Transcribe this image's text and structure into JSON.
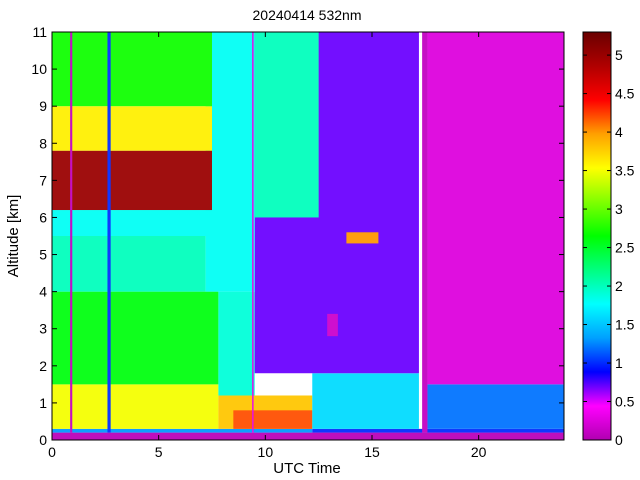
{
  "chart_data": {
    "type": "heatmap",
    "title": "20240414 532nm",
    "xlabel": "UTC Time",
    "ylabel": "Altitude [km]",
    "xlim": [
      0,
      24
    ],
    "ylim": [
      0,
      11
    ],
    "xticks": [
      0,
      5,
      10,
      15,
      20
    ],
    "yticks": [
      0,
      1,
      2,
      3,
      4,
      5,
      6,
      7,
      8,
      9,
      10,
      11
    ],
    "colorbar": {
      "ticks": [
        "0",
        "0.5",
        "1",
        "1.5",
        "2",
        "2.5",
        "3",
        "3.5",
        "4",
        "4.5",
        "5"
      ],
      "range": [
        0,
        5.3
      ],
      "colormap": [
        "#b000b0",
        "#ff00ff",
        "#0000ff",
        "#00a0ff",
        "#00ffff",
        "#00ff80",
        "#00ff00",
        "#80ff00",
        "#ffff00",
        "#ffa000",
        "#ff0000",
        "#b00000",
        "#6a0000"
      ]
    },
    "regions": [
      {
        "x0": 0,
        "x1": 24,
        "y0": 0,
        "y1": 0.2,
        "value": 0.05
      },
      {
        "x0": 0,
        "x1": 12.2,
        "y0": 0.2,
        "y1": 0.3,
        "value": 1.3
      },
      {
        "x0": 12.2,
        "x1": 24,
        "y0": 0.2,
        "y1": 0.3,
        "value": 1.0
      },
      {
        "x0": 0,
        "x1": 7.8,
        "y0": 0.3,
        "y1": 1.5,
        "value": 3.5
      },
      {
        "x0": 7.8,
        "x1": 12.2,
        "y0": 0.3,
        "y1": 1.2,
        "value": 3.8
      },
      {
        "x0": 8.5,
        "x1": 12.2,
        "y0": 0.3,
        "y1": 0.8,
        "value": 4.2
      },
      {
        "x0": 12.2,
        "x1": 17.2,
        "y0": 0.3,
        "y1": 1.8,
        "value": 1.6
      },
      {
        "x0": 17.6,
        "x1": 24,
        "y0": 0.3,
        "y1": 1.5,
        "value": 1.2
      },
      {
        "x0": 0,
        "x1": 7.8,
        "y0": 1.5,
        "y1": 4.0,
        "value": 2.6
      },
      {
        "x0": 7.8,
        "x1": 9.5,
        "y0": 1.2,
        "y1": 4.0,
        "value": 1.9
      },
      {
        "x0": 0,
        "x1": 7.2,
        "y0": 4.0,
        "y1": 5.5,
        "value": 2.0
      },
      {
        "x0": 9.5,
        "x1": 17.2,
        "y0": 1.8,
        "y1": 11,
        "value": 0.7
      },
      {
        "x0": 17.6,
        "x1": 24,
        "y0": 1.5,
        "y1": 11,
        "value": 0.25
      },
      {
        "x0": 7.2,
        "x1": 9.5,
        "y0": 4.0,
        "y1": 11,
        "value": 1.8
      },
      {
        "x0": 0,
        "x1": 7.8,
        "y0": 5.5,
        "y1": 6.2,
        "value": 1.8
      },
      {
        "x0": 0,
        "x1": 7.5,
        "y0": 6.2,
        "y1": 7.8,
        "value": 5.0
      },
      {
        "x0": 0,
        "x1": 7.5,
        "y0": 7.8,
        "y1": 9.0,
        "value": 3.6
      },
      {
        "x0": 0,
        "x1": 7.5,
        "y0": 9.0,
        "y1": 11,
        "value": 2.7
      },
      {
        "x0": 9.5,
        "x1": 12.5,
        "y0": 6.0,
        "y1": 11,
        "value": 2.0
      },
      {
        "x0": 0.85,
        "x1": 0.95,
        "y0": 0.2,
        "y1": 11,
        "value": 0.1
      },
      {
        "x0": 2.6,
        "x1": 2.75,
        "y0": 0.2,
        "y1": 11,
        "value": 1.0
      },
      {
        "x0": 17.35,
        "x1": 17.6,
        "y0": 0.2,
        "y1": 11,
        "value": 0.1
      },
      {
        "x0": 9.38,
        "x1": 9.45,
        "y0": 0.2,
        "y1": 11,
        "value": 0.3
      },
      {
        "x0": 13.8,
        "x1": 15.3,
        "y0": 5.3,
        "y1": 5.6,
        "value": 4.0
      },
      {
        "x0": 12.9,
        "x1": 13.4,
        "y0": 2.8,
        "y1": 3.4,
        "value": 0.15
      }
    ]
  }
}
